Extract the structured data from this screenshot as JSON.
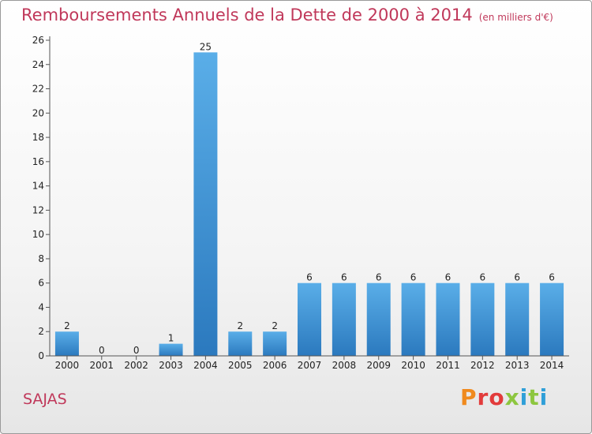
{
  "chart_data": {
    "type": "bar",
    "title": "Remboursements Annuels de la Dette de 2000 à 2014",
    "unit_label": "(en milliers d'€)",
    "categories": [
      "2000",
      "2001",
      "2002",
      "2003",
      "2004",
      "2005",
      "2006",
      "2007",
      "2008",
      "2009",
      "2010",
      "2011",
      "2012",
      "2013",
      "2014"
    ],
    "values": [
      2,
      0,
      0,
      1,
      25,
      2,
      2,
      6,
      6,
      6,
      6,
      6,
      6,
      6,
      6
    ],
    "ylim": [
      0,
      26
    ],
    "yticks": [
      0,
      2,
      4,
      6,
      8,
      10,
      12,
      14,
      16,
      18,
      20,
      22,
      24,
      26
    ],
    "grid": false,
    "data_labels": true,
    "bar_color_top": "#5aaee8",
    "bar_color_bottom": "#2b79be"
  },
  "commune": "SAJAS",
  "logo": {
    "text": "Proxiti",
    "colors": [
      "#f08a1e",
      "#e23b3b",
      "#8dc63f",
      "#2f9fd8"
    ]
  }
}
